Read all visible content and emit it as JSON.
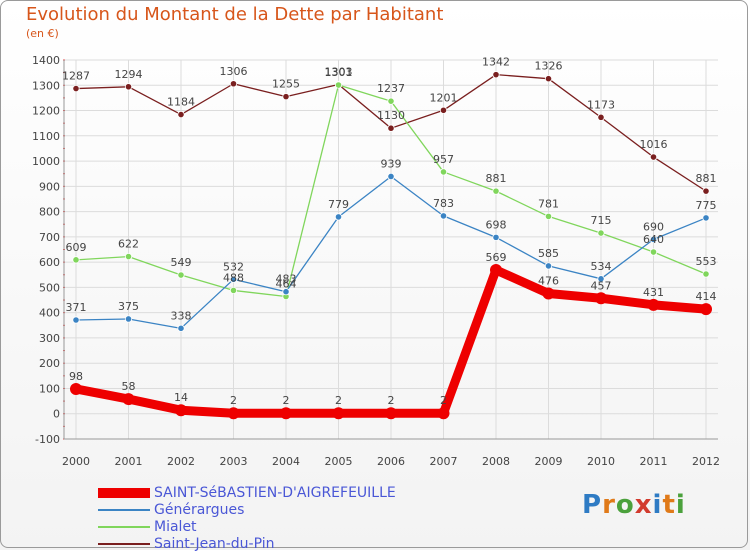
{
  "title": "Evolution du Montant de la Dette par Habitant",
  "subtitle": "(en €)",
  "logo": "Proxiti",
  "chart_data": {
    "type": "line",
    "x": [
      "2000",
      "2001",
      "2002",
      "2003",
      "2004",
      "2005",
      "2006",
      "2007",
      "2008",
      "2009",
      "2010",
      "2011",
      "2012"
    ],
    "ylim": [
      -100,
      1400
    ],
    "yticks": [
      -100,
      0,
      100,
      200,
      300,
      400,
      500,
      600,
      700,
      800,
      900,
      1000,
      1100,
      1200,
      1300,
      1400
    ],
    "grid": true,
    "legend_position": "bottom-left",
    "series": [
      {
        "name": "SAINT-SéBASTIEN-D'AIGREFEUILLE",
        "color": "#ee0000",
        "values": [
          98,
          58,
          14,
          2,
          2,
          2,
          2,
          2,
          569,
          476,
          457,
          431,
          414
        ]
      },
      {
        "name": "Générargues",
        "color": "#3b84c4",
        "values": [
          371,
          375,
          338,
          532,
          483,
          779,
          939,
          783,
          698,
          585,
          534,
          690,
          775
        ]
      },
      {
        "name": "Mialet",
        "color": "#80d65c",
        "values": [
          609,
          622,
          549,
          488,
          464,
          1301,
          1237,
          957,
          881,
          781,
          715,
          640,
          553
        ]
      },
      {
        "name": "Saint-Jean-du-Pin",
        "color": "#7a1f1f",
        "values": [
          1287,
          1294,
          1184,
          1306,
          1255,
          1303,
          1130,
          1201,
          1342,
          1326,
          1173,
          1016,
          881
        ]
      }
    ],
    "point_labels": [
      [
        "98",
        "58",
        "14",
        "2",
        "2",
        "2",
        "2",
        "2",
        "569",
        "476",
        "457",
        "431",
        "414"
      ],
      [
        "371",
        "375",
        "338",
        "532",
        "483",
        "779",
        "939",
        "783",
        "698",
        "585",
        "534",
        "690",
        "775"
      ],
      [
        "609",
        "622",
        "549",
        "488",
        "464",
        "1301",
        "1237",
        "957",
        "881",
        "781",
        "715",
        "640",
        "553"
      ],
      [
        "1287",
        "1294",
        "1184",
        "1306",
        "1255",
        "1303",
        "1130",
        "1201",
        "1342",
        "1326",
        "1173",
        "1016",
        "881"
      ]
    ]
  }
}
